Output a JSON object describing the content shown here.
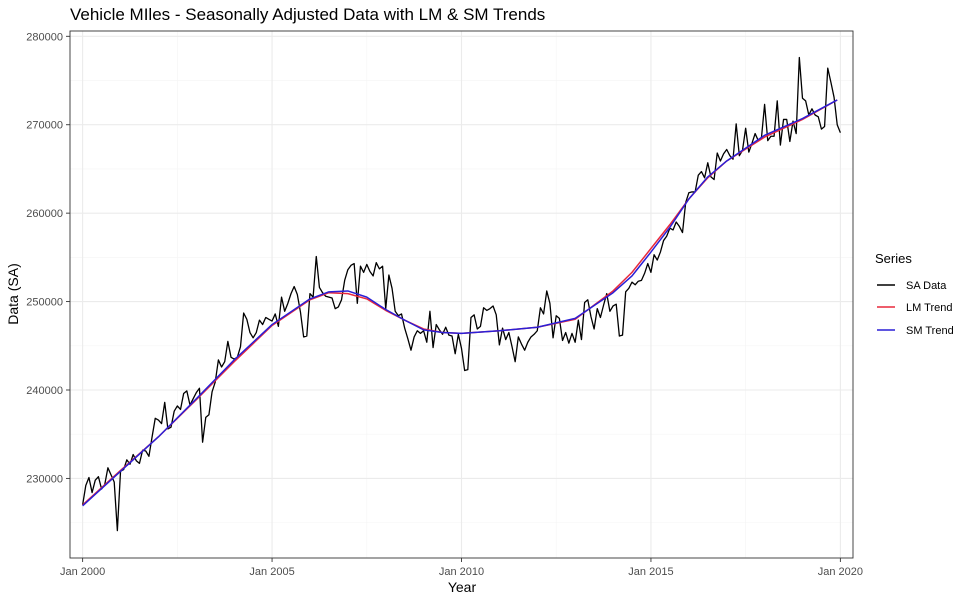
{
  "chart_data": {
    "type": "line",
    "title": "Vehicle MIles - Seasonally Adjusted Data with LM & SM Trends",
    "xlabel": "Year",
    "ylabel": "Data (SA)",
    "xlim": [
      "1999-09",
      "2020-05"
    ],
    "ylim": [
      221000,
      280600
    ],
    "x_ticks": [
      "Jan 2000",
      "Jan 2005",
      "Jan 2010",
      "Jan 2015",
      "Jan 2020"
    ],
    "y_ticks": [
      "230000",
      "240000",
      "250000",
      "260000",
      "270000",
      "280000"
    ],
    "grid": true,
    "legend": {
      "title": "Series",
      "position": "right",
      "entries": [
        "SA Data",
        "LM Trend",
        "SM Trend"
      ]
    },
    "series": [
      {
        "name": "SA Data",
        "color": "#000000",
        "start": "2000-01",
        "frequency": "monthly",
        "values": [
          227000,
          229200,
          230100,
          228400,
          229800,
          230200,
          228800,
          229300,
          231200,
          230400,
          229600,
          224100,
          230800,
          231000,
          232100,
          231600,
          232700,
          232000,
          231700,
          233200,
          233100,
          232500,
          234700,
          236800,
          236600,
          236200,
          238600,
          235600,
          235800,
          237600,
          238200,
          237800,
          239600,
          239900,
          238300,
          239000,
          239700,
          240200,
          234100,
          236900,
          237200,
          239800,
          240900,
          243400,
          242600,
          243200,
          245500,
          243700,
          243500,
          243700,
          244900,
          248700,
          248000,
          246500,
          245900,
          246500,
          247900,
          247400,
          248200,
          248000,
          247800,
          248600,
          247200,
          250500,
          248900,
          249800,
          250900,
          251700,
          250800,
          248800,
          246000,
          246100,
          250900,
          250500,
          255100,
          251600,
          251000,
          250600,
          250500,
          250400,
          249200,
          249400,
          250200,
          252400,
          253600,
          254100,
          254300,
          249800,
          254000,
          253300,
          254200,
          253400,
          252900,
          254400,
          253700,
          254000,
          249200,
          253000,
          251500,
          248900,
          248400,
          248600,
          247000,
          245800,
          244500,
          246000,
          246700,
          246400,
          246700,
          245400,
          248900,
          244800,
          247400,
          246800,
          246300,
          247100,
          246200,
          246100,
          244100,
          246300,
          244700,
          242200,
          242300,
          248200,
          248500,
          246900,
          247200,
          249300,
          249000,
          249200,
          249500,
          248500,
          245100,
          247000,
          245700,
          246500,
          244900,
          243200,
          246000,
          245200,
          244500,
          245400,
          246000,
          246300,
          246700,
          249300,
          248600,
          251200,
          249800,
          245900,
          248400,
          248100,
          245600,
          246500,
          245300,
          246400,
          245400,
          247900,
          245700,
          249900,
          250200,
          248300,
          246900,
          249200,
          248200,
          249600,
          250900,
          248900,
          249500,
          249700,
          246100,
          246200,
          251100,
          251500,
          252200,
          251900,
          252300,
          252400,
          253200,
          254300,
          253300,
          255300,
          254700,
          255600,
          256900,
          257400,
          258300,
          258100,
          259000,
          258500,
          257800,
          261200,
          262300,
          262400,
          262400,
          264300,
          264700,
          264000,
          265700,
          264100,
          263800,
          266800,
          265900,
          266700,
          267200,
          266500,
          266100,
          270100,
          266500,
          267100,
          269600,
          266900,
          267900,
          269000,
          268200,
          268500,
          272300,
          268200,
          268700,
          268700,
          272700,
          267700,
          270600,
          270600,
          268100,
          270400,
          269000,
          277600,
          273000,
          272700,
          271100,
          271800,
          271100,
          270900,
          269500,
          269800,
          276400,
          274800,
          273100,
          270000,
          269100
        ],
        "label_values": [
          227000,
          230000,
          232000,
          235000,
          238000,
          234000,
          238000,
          242000,
          244000,
          248000,
          247000,
          245000,
          246000,
          248000,
          250000,
          249000,
          251000,
          246000,
          255000,
          251000,
          250000,
          249000,
          251000,
          254000,
          250000,
          254000,
          253000,
          252000,
          254000,
          249000,
          248000,
          245000,
          247000,
          246000,
          249000,
          244000,
          246000,
          242000,
          248000,
          249000,
          246000,
          244000,
          246000,
          244000,
          246000,
          249000,
          251000,
          249000,
          246000,
          245000,
          250000,
          248000,
          246000,
          251000,
          252000,
          254000,
          255000,
          257000,
          258000,
          262000,
          264000,
          263000,
          267000,
          264000,
          270000,
          266000,
          270000,
          268000,
          272000,
          268000,
          273000,
          270000,
          271000,
          277000,
          273000,
          271000,
          270000,
          276000,
          273000,
          269000
        ]
      },
      {
        "name": "LM Trend",
        "color": "#e8283c",
        "x": [
          2000.0,
          2001.0,
          2002.0,
          2003.0,
          2004.0,
          2005.0,
          2006.0,
          2006.5,
          2007.0,
          2007.5,
          2008.0,
          2008.5,
          2009.0,
          2009.5,
          2010.0,
          2011.0,
          2012.0,
          2013.0,
          2014.0,
          2014.5,
          2015.0,
          2015.5,
          2016.0,
          2016.5,
          2017.0,
          2018.0,
          2019.0,
          2019.917
        ],
        "values": [
          227000,
          230900,
          234700,
          238900,
          243200,
          247300,
          250200,
          251000,
          250900,
          250300,
          249000,
          247900,
          246900,
          246500,
          246400,
          246700,
          247100,
          248000,
          251200,
          253300,
          256000,
          258700,
          261600,
          264000,
          265900,
          268600,
          270600,
          272800
        ]
      },
      {
        "name": "SM Trend",
        "color": "#2a1fd6",
        "x": [
          2000.0,
          2001.0,
          2002.0,
          2003.0,
          2004.0,
          2005.0,
          2006.0,
          2006.5,
          2007.0,
          2007.5,
          2008.0,
          2008.5,
          2009.0,
          2009.5,
          2010.0,
          2011.0,
          2012.0,
          2013.0,
          2014.0,
          2014.5,
          2015.0,
          2015.5,
          2016.0,
          2016.5,
          2017.0,
          2018.0,
          2019.0,
          2019.917
        ],
        "values": [
          226900,
          230800,
          234700,
          239000,
          243400,
          247400,
          250300,
          251100,
          251200,
          250500,
          249100,
          247900,
          246800,
          246500,
          246400,
          246700,
          247100,
          248100,
          251000,
          252900,
          255600,
          258400,
          261600,
          264100,
          265900,
          268800,
          270700,
          272800
        ]
      }
    ]
  }
}
